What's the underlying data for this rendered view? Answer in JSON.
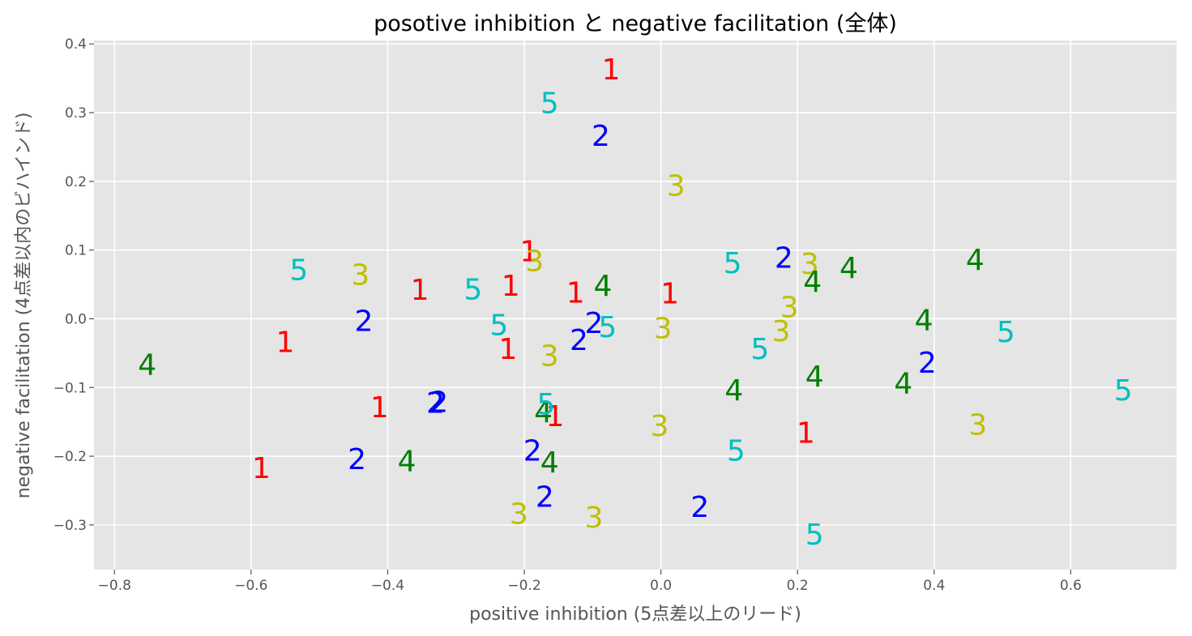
{
  "chart_data": {
    "type": "scatter",
    "title": "posotive inhibition と negative facilitation (全体)",
    "xlabel": "positive inhibition (5点差以上のリード)",
    "ylabel": "negative facilitation (4点差以内のビハインド)",
    "xlim": [
      -0.83,
      0.755
    ],
    "ylim": [
      -0.365,
      0.405
    ],
    "xticks": [
      -0.8,
      -0.6,
      -0.4,
      -0.2,
      0.0,
      0.2,
      0.4,
      0.6
    ],
    "xtick_labels": [
      "−0.8",
      "−0.6",
      "−0.4",
      "−0.2",
      "0.0",
      "0.2",
      "0.4",
      "0.6"
    ],
    "yticks": [
      -0.3,
      -0.2,
      -0.1,
      0.0,
      0.1,
      0.2,
      0.3,
      0.4
    ],
    "ytick_labels": [
      "−0.3",
      "−0.2",
      "−0.1",
      "0.0",
      "0.1",
      "0.2",
      "0.3",
      "0.4"
    ],
    "grid": true,
    "background": "#e5e5e5",
    "series": [
      {
        "label": "1",
        "color": "#ff0000",
        "points": [
          [
            -0.073,
            0.362
          ],
          [
            -0.193,
            0.097
          ],
          [
            -0.55,
            -0.035
          ],
          [
            -0.585,
            -0.218
          ],
          [
            -0.412,
            -0.13
          ],
          [
            -0.353,
            0.041
          ],
          [
            -0.22,
            0.047
          ],
          [
            -0.224,
            -0.045
          ],
          [
            -0.125,
            0.037
          ],
          [
            0.013,
            0.036
          ],
          [
            -0.155,
            -0.143
          ],
          [
            0.212,
            -0.167
          ]
        ]
      },
      {
        "label": "2",
        "color": "#0000ff",
        "points": [
          [
            -0.088,
            0.265
          ],
          [
            -0.435,
            -0.004
          ],
          [
            -0.445,
            -0.205
          ],
          [
            -0.33,
            -0.123
          ],
          [
            -0.325,
            -0.122
          ],
          [
            -0.188,
            -0.193
          ],
          [
            -0.17,
            -0.26
          ],
          [
            -0.12,
            -0.032
          ],
          [
            -0.098,
            -0.007
          ],
          [
            0.057,
            -0.275
          ],
          [
            0.18,
            0.088
          ],
          [
            0.39,
            -0.065
          ]
        ]
      },
      {
        "label": "3",
        "color": "#bfbf00",
        "points": [
          [
            0.022,
            0.193
          ],
          [
            -0.185,
            0.083
          ],
          [
            -0.44,
            0.063
          ],
          [
            -0.163,
            -0.055
          ],
          [
            -0.208,
            -0.285
          ],
          [
            -0.098,
            -0.29
          ],
          [
            0.003,
            -0.015
          ],
          [
            -0.002,
            -0.157
          ],
          [
            0.218,
            0.079
          ],
          [
            0.188,
            0.016
          ],
          [
            0.176,
            -0.019
          ],
          [
            0.464,
            -0.155
          ]
        ]
      },
      {
        "label": "4",
        "color": "#008000",
        "points": [
          [
            -0.752,
            -0.068
          ],
          [
            -0.372,
            -0.208
          ],
          [
            -0.172,
            -0.137
          ],
          [
            -0.163,
            -0.21
          ],
          [
            -0.085,
            0.047
          ],
          [
            0.107,
            -0.105
          ],
          [
            0.222,
            0.053
          ],
          [
            0.225,
            -0.085
          ],
          [
            0.275,
            0.073
          ],
          [
            0.385,
            -0.003
          ],
          [
            0.355,
            -0.095
          ],
          [
            0.46,
            0.085
          ]
        ]
      },
      {
        "label": "5",
        "color": "#00bfbf",
        "points": [
          [
            -0.163,
            0.313
          ],
          [
            -0.53,
            0.07
          ],
          [
            -0.275,
            0.042
          ],
          [
            -0.237,
            -0.01
          ],
          [
            -0.168,
            -0.125
          ],
          [
            -0.078,
            -0.013
          ],
          [
            0.105,
            0.08
          ],
          [
            0.145,
            -0.045
          ],
          [
            0.11,
            -0.193
          ],
          [
            0.225,
            -0.315
          ],
          [
            0.505,
            -0.02
          ],
          [
            0.677,
            -0.105
          ]
        ]
      }
    ]
  }
}
